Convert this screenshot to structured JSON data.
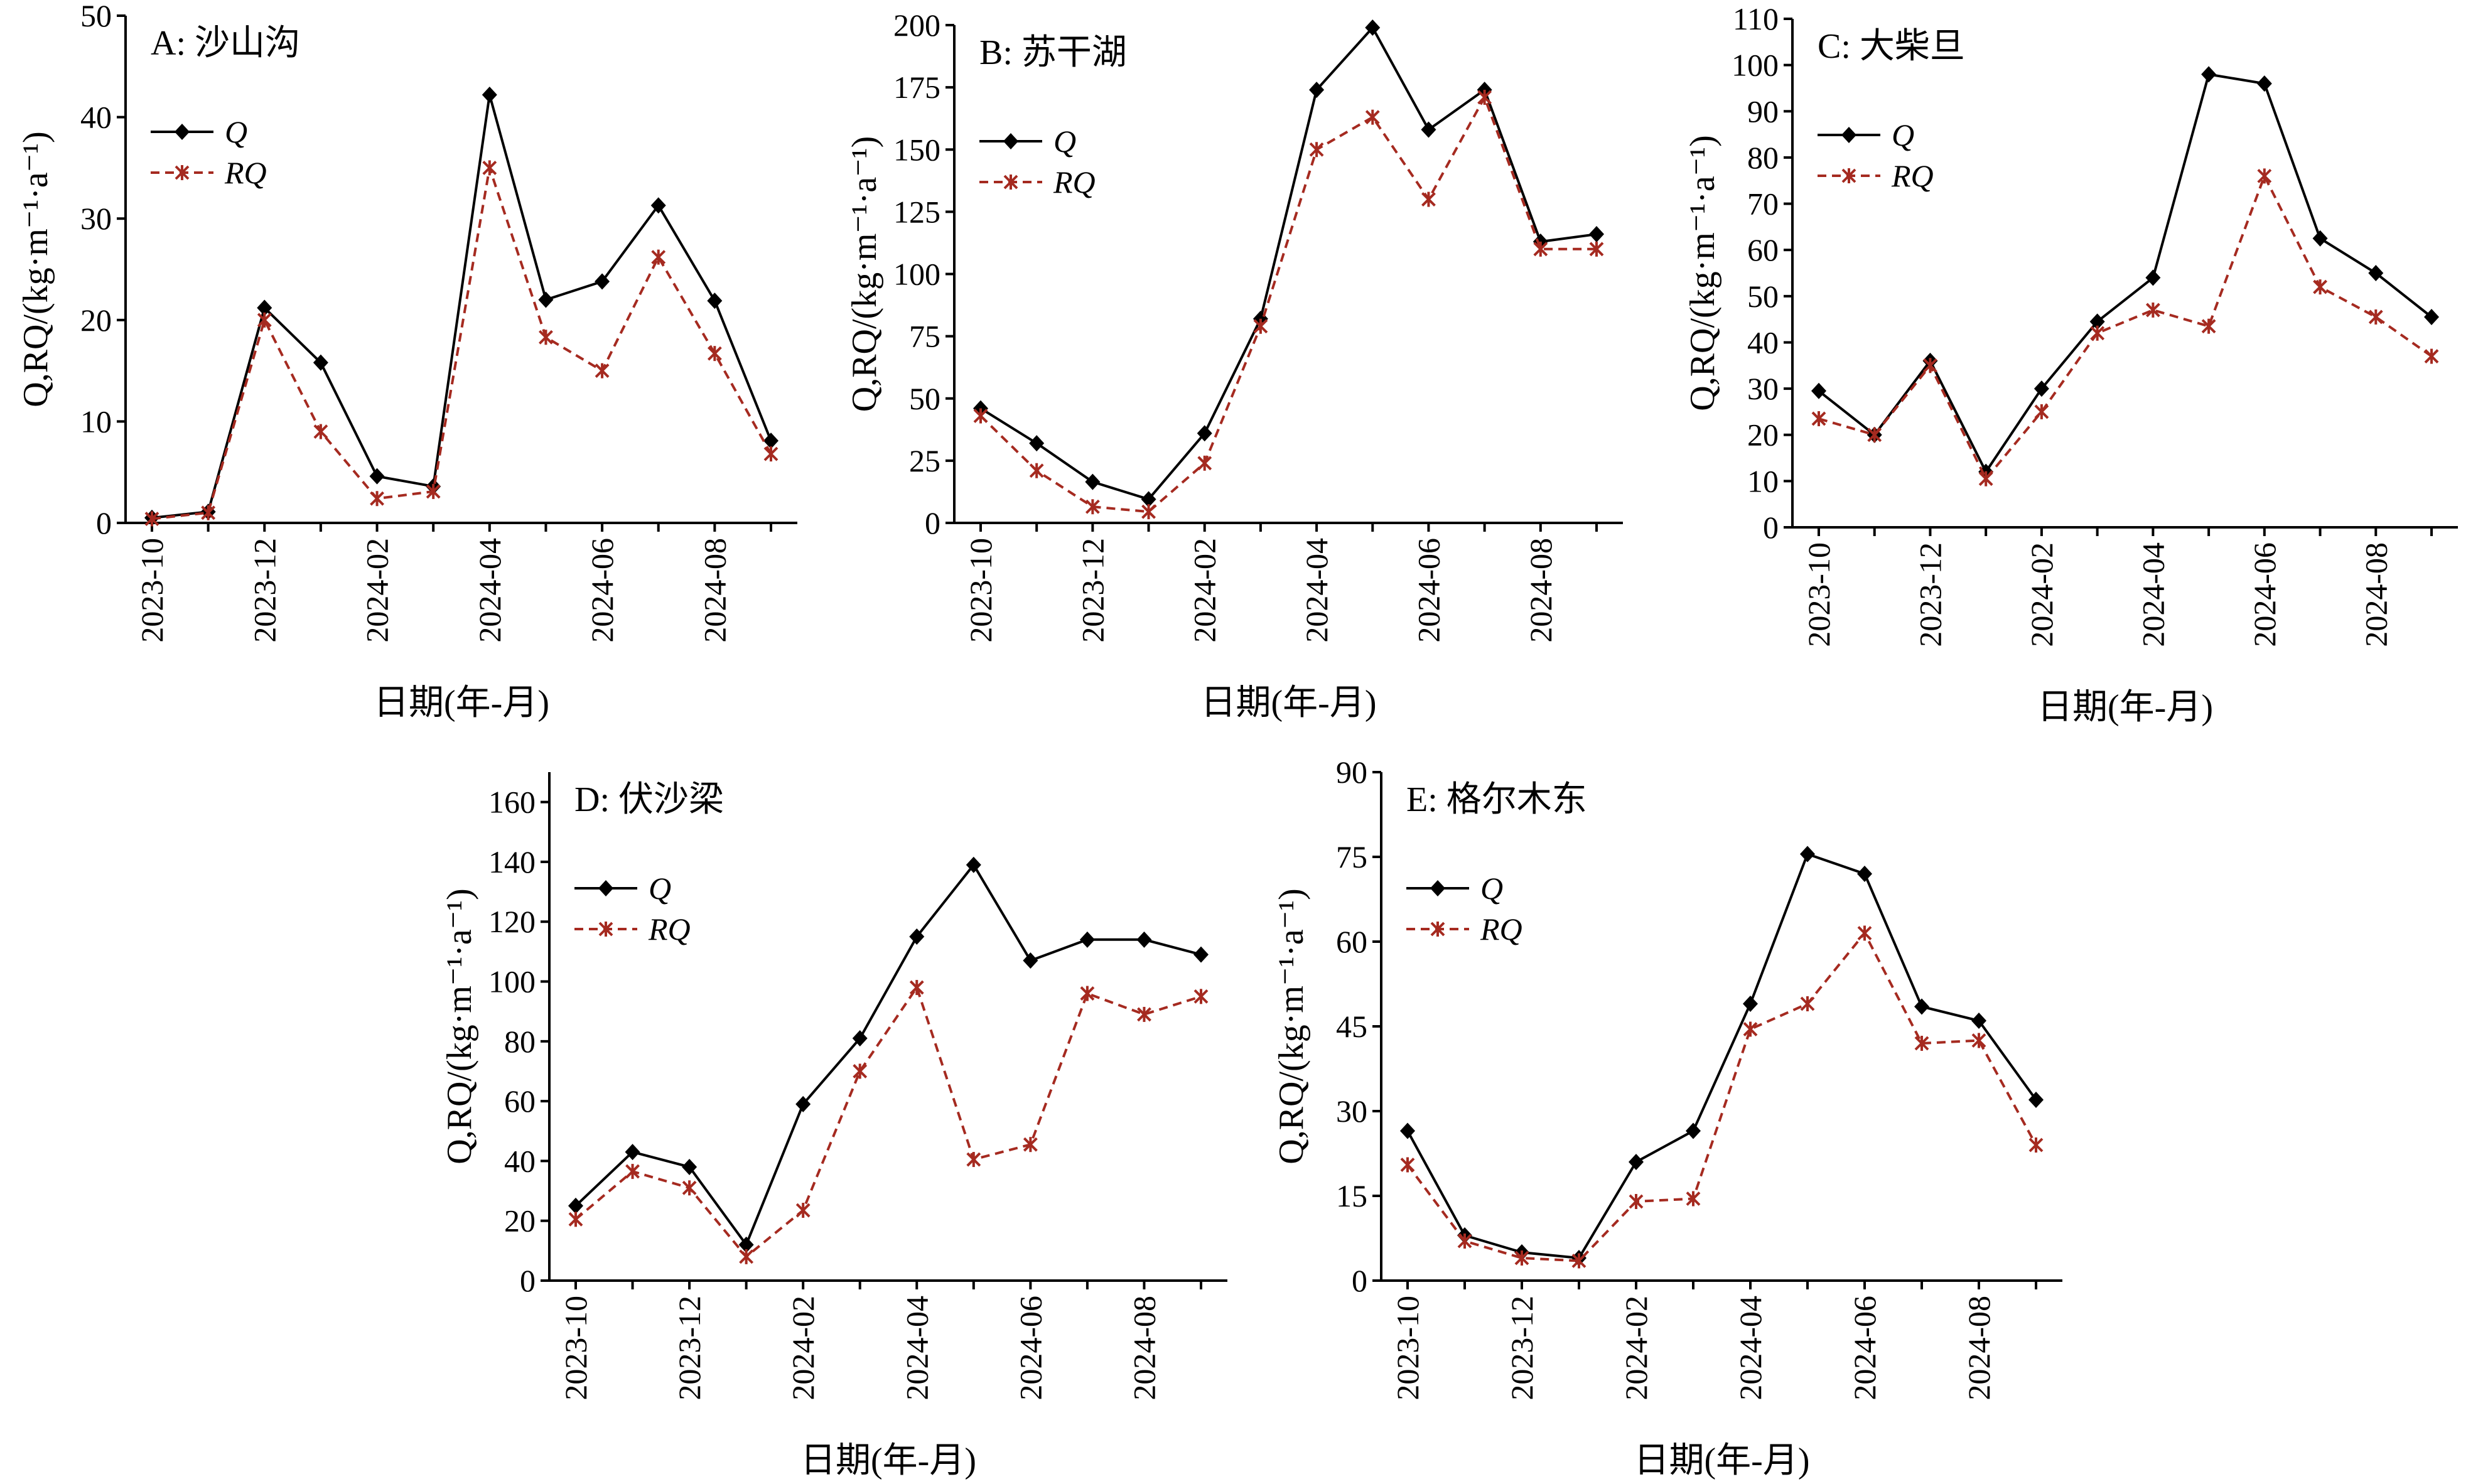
{
  "chart_data": [
    {
      "type": "line",
      "title": "A: 沙山沟",
      "xlabel": "日期(年-月)",
      "ylabel": "Q,RQ/(kg·m⁻¹·a⁻¹)",
      "x": [
        "2023-10",
        "2023-11",
        "2023-12",
        "2024-01",
        "2024-02",
        "2024-03",
        "2024-04",
        "2024-05",
        "2024-06",
        "2024-07",
        "2024-08",
        "2024-09"
      ],
      "x_ticks": [
        "2023-10",
        "2023-12",
        "2024-02",
        "2024-04",
        "2024-06",
        "2024-08"
      ],
      "ylim": [
        0,
        50
      ],
      "y_ticks": [
        0,
        10,
        20,
        30,
        40,
        50
      ],
      "series": [
        {
          "name": "Q",
          "color": "#000000",
          "values": [
            0.5,
            1.1,
            21.2,
            15.8,
            4.6,
            3.6,
            42.2,
            22.0,
            23.8,
            31.3,
            21.9,
            8.1
          ]
        },
        {
          "name": "RQ",
          "color": "#a52a20",
          "values": [
            0.4,
            1.0,
            20.0,
            9.0,
            2.4,
            3.1,
            35.0,
            18.3,
            15.0,
            26.2,
            16.7,
            6.8
          ]
        }
      ],
      "legend": "upper-left"
    },
    {
      "type": "line",
      "title": "B: 苏干湖",
      "xlabel": "日期(年-月)",
      "ylabel": "Q,RQ/(kg·m⁻¹·a⁻¹)",
      "x": [
        "2023-10",
        "2023-11",
        "2023-12",
        "2024-01",
        "2024-02",
        "2024-03",
        "2024-04",
        "2024-05",
        "2024-06",
        "2024-07",
        "2024-08",
        "2024-09"
      ],
      "x_ticks": [
        "2023-10",
        "2023-12",
        "2024-02",
        "2024-04",
        "2024-06",
        "2024-08"
      ],
      "ylim": [
        0,
        200
      ],
      "y_ticks": [
        0,
        25,
        50,
        75,
        100,
        125,
        150,
        175,
        200
      ],
      "series": [
        {
          "name": "Q",
          "color": "#000000",
          "values": [
            46,
            32,
            16.5,
            9.5,
            36,
            82,
            174,
            199,
            158,
            174,
            113,
            116
          ]
        },
        {
          "name": "RQ",
          "color": "#a52a20",
          "values": [
            43,
            21,
            6.5,
            4.5,
            24,
            79,
            150,
            163,
            130,
            171,
            110,
            110
          ]
        }
      ],
      "legend": "upper-left"
    },
    {
      "type": "line",
      "title": "C: 大柴旦",
      "xlabel": "日期(年-月)",
      "ylabel": "Q,RQ/(kg·m⁻¹·a⁻¹)",
      "x": [
        "2023-10",
        "2023-11",
        "2023-12",
        "2024-01",
        "2024-02",
        "2024-03",
        "2024-04",
        "2024-05",
        "2024-06",
        "2024-07",
        "2024-08",
        "2024-09"
      ],
      "x_ticks": [
        "2023-10",
        "2023-12",
        "2024-02",
        "2024-04",
        "2024-06",
        "2024-08"
      ],
      "ylim": [
        0,
        110
      ],
      "y_ticks": [
        0,
        10,
        20,
        30,
        40,
        50,
        60,
        70,
        80,
        90,
        100,
        110
      ],
      "series": [
        {
          "name": "Q",
          "color": "#000000",
          "values": [
            29.5,
            20,
            36,
            12,
            30,
            44.5,
            54,
            98,
            96,
            62.5,
            55,
            45.5
          ]
        },
        {
          "name": "RQ",
          "color": "#a52a20",
          "values": [
            23.5,
            20,
            35,
            10.5,
            25,
            42,
            47,
            43.5,
            76,
            52,
            45.5,
            37
          ]
        }
      ],
      "legend": "upper-left"
    },
    {
      "type": "line",
      "title": "D: 伏沙梁",
      "xlabel": "日期(年-月)",
      "ylabel": "Q,RQ/(kg·m⁻¹·a⁻¹)",
      "x": [
        "2023-10",
        "2023-11",
        "2023-12",
        "2024-01",
        "2024-02",
        "2024-03",
        "2024-04",
        "2024-05",
        "2024-06",
        "2024-07",
        "2024-08",
        "2024-09"
      ],
      "x_ticks": [
        "2023-10",
        "2023-12",
        "2024-02",
        "2024-04",
        "2024-06",
        "2024-08"
      ],
      "ylim": [
        0,
        170
      ],
      "y_ticks": [
        0,
        20,
        40,
        60,
        80,
        100,
        120,
        140,
        160
      ],
      "series": [
        {
          "name": "Q",
          "color": "#000000",
          "values": [
            25,
            43,
            38,
            12,
            59,
            81,
            115,
            139,
            107,
            114,
            114,
            109
          ]
        },
        {
          "name": "RQ",
          "color": "#a52a20",
          "values": [
            20.5,
            36.5,
            31,
            8,
            23.5,
            70,
            98,
            40.5,
            45.5,
            96,
            89,
            95
          ]
        }
      ],
      "legend": "upper-left"
    },
    {
      "type": "line",
      "title": "E: 格尔木东",
      "xlabel": "日期(年-月)",
      "ylabel": "Q,RQ/(kg·m⁻¹·a⁻¹)",
      "x": [
        "2023-10",
        "2023-11",
        "2023-12",
        "2024-01",
        "2024-02",
        "2024-03",
        "2024-04",
        "2024-05",
        "2024-06",
        "2024-07",
        "2024-08",
        "2024-09"
      ],
      "x_ticks": [
        "2023-10",
        "2023-12",
        "2024-02",
        "2024-04",
        "2024-06",
        "2024-08"
      ],
      "ylim": [
        0,
        90
      ],
      "y_ticks": [
        0,
        15,
        30,
        45,
        60,
        75,
        90
      ],
      "series": [
        {
          "name": "Q",
          "color": "#000000",
          "values": [
            26.5,
            8,
            5,
            4,
            21,
            26.5,
            49,
            75.5,
            72,
            48.5,
            46,
            32
          ]
        },
        {
          "name": "RQ",
          "color": "#a52a20",
          "values": [
            20.5,
            7,
            4,
            3.5,
            14,
            14.5,
            44.5,
            49,
            61.5,
            42,
            42.5,
            24
          ]
        }
      ],
      "legend": "upper-left"
    }
  ]
}
